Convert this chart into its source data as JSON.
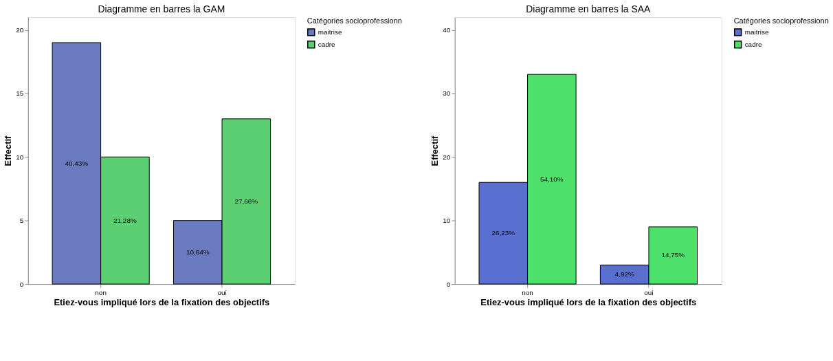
{
  "chart_data": [
    {
      "type": "bar",
      "title": "Diagramme en barres la GAM",
      "xlabel": "Etiez-vous impliqué lors de la fixation des objectifs",
      "ylabel": "Effectif",
      "legend_title": "Catégories socioprofessionn",
      "legend": "right",
      "grid": false,
      "categories": [
        "non",
        "oui"
      ],
      "ylim": [
        0,
        21
      ],
      "yticks": [
        0,
        5,
        10,
        15,
        20
      ],
      "series": [
        {
          "name": "maitrise",
          "color": "#6a7bbf",
          "values": [
            19,
            5
          ]
        },
        {
          "name": "cadre",
          "color": "#5ccf72",
          "values": [
            10,
            13
          ]
        }
      ],
      "annotations": [
        {
          "text": "40,43%",
          "x": "non",
          "y": 9.5
        },
        {
          "text": "10,64%",
          "x": "oui",
          "y": 2.5
        },
        {
          "text": "21,28%",
          "x": "non",
          "y": 5
        },
        {
          "text": "27,66%",
          "x": "oui",
          "y": 6.5
        }
      ]
    },
    {
      "type": "bar",
      "title": "Diagramme en barres la SAA",
      "xlabel": "Etiez-vous impliqué lors de la fixation des objectifs",
      "ylabel": "Effectif",
      "legend_title": "Catégories socioprofessionn",
      "legend": "right",
      "grid": false,
      "categories": [
        "non",
        "oui"
      ],
      "ylim": [
        0,
        42
      ],
      "yticks": [
        0,
        10,
        20,
        30,
        40
      ],
      "series": [
        {
          "name": "maitrise",
          "color": "#5a70d0",
          "values": [
            16,
            3
          ]
        },
        {
          "name": "cadre",
          "color": "#4de06a",
          "values": [
            33,
            9
          ]
        }
      ],
      "annotations": [
        {
          "text": "26,23%",
          "x": "non",
          "y": 8
        },
        {
          "text": "4,92%",
          "x": "oui",
          "y": 1.5
        },
        {
          "text": "54,10%",
          "x": "non",
          "y": 16.5
        },
        {
          "text": "14,75%",
          "x": "oui",
          "y": 4.5
        }
      ]
    }
  ]
}
